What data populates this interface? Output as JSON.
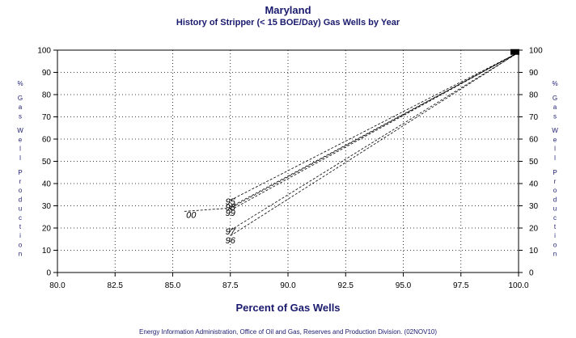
{
  "chart_data": {
    "type": "line",
    "title": "Maryland",
    "subtitle": "History of Stripper (< 15 BOE/Day) Gas Wells by Year",
    "xlabel": "Percent of Gas Wells",
    "ylabel": "% Gas Well Production",
    "footer": "Energy Information Administration, Office of Oil and Gas, Reserves and Production Division. (02NOV10)",
    "xlim": [
      80,
      100
    ],
    "ylim": [
      0,
      100
    ],
    "grid": true,
    "xticks": [
      "80.0",
      "82.5",
      "85.0",
      "87.5",
      "90.0",
      "92.5",
      "95.0",
      "97.5",
      "100.0"
    ],
    "yticks": [
      "0",
      "10",
      "20",
      "30",
      "40",
      "50",
      "60",
      "70",
      "80",
      "90",
      "100"
    ],
    "series": [
      {
        "x": [
          87.5,
          100.0
        ],
        "y": [
          16.5,
          99.0
        ]
      },
      {
        "x": [
          87.5,
          100.0
        ],
        "y": [
          19.0,
          99.0
        ]
      },
      {
        "x": [
          87.5,
          100.0
        ],
        "y": [
          28.0,
          99.0
        ]
      },
      {
        "x": [
          87.5,
          100.0
        ],
        "y": [
          29.5,
          99.0
        ]
      },
      {
        "x": [
          87.5,
          100.0
        ],
        "y": [
          32.5,
          99.0
        ]
      },
      {
        "x": [
          85.5,
          87.5,
          100.0
        ],
        "y": [
          27.5,
          29.0,
          99.0
        ]
      }
    ],
    "point_labels": [
      {
        "label": "96",
        "x": 87.5,
        "y": 14.5
      },
      {
        "label": "97",
        "x": 87.5,
        "y": 18.5
      },
      {
        "label": "99",
        "x": 87.5,
        "y": 27.0
      },
      {
        "label": "98",
        "x": 87.5,
        "y": 29.5
      },
      {
        "label": "95",
        "x": 87.5,
        "y": 32.0
      },
      {
        "label": "00",
        "x": 85.8,
        "y": 26.0
      }
    ]
  }
}
